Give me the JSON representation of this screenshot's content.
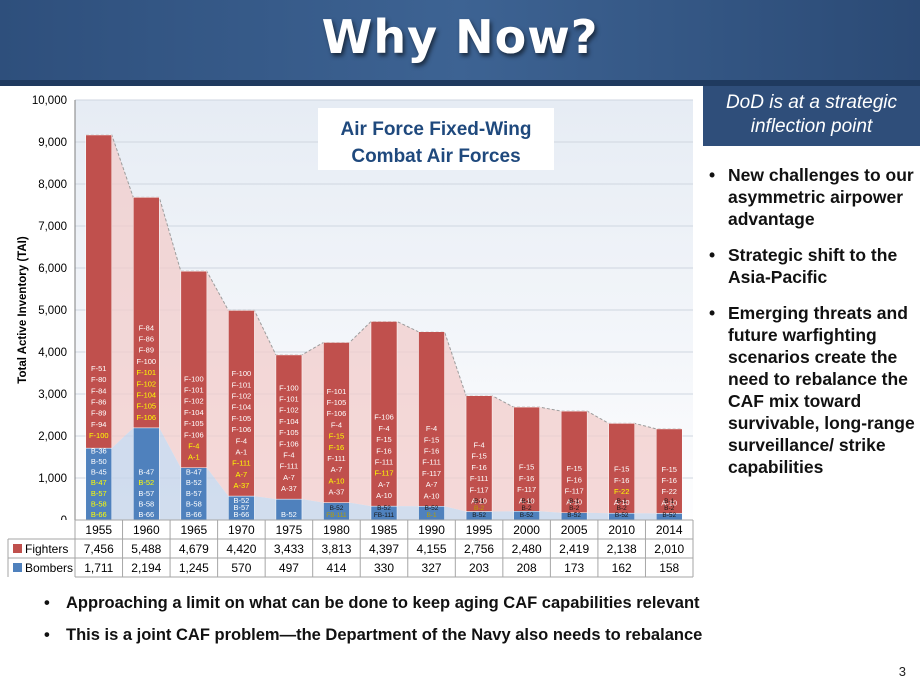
{
  "slide": {
    "title": "Why Now?",
    "callout": "DoD is at a strategic inflection point",
    "bullets": [
      "New challenges to our asymmetric airpower advantage",
      "Strategic shift to the Asia-Pacific",
      "Emerging threats and future warfighting scenarios create the need to rebalance the CAF mix toward survivable, long-range surveillance/ strike capabilities"
    ],
    "bottom_bullets": [
      "Approaching a limit on what can be done to keep aging CAF capabilities relevant",
      "This is a joint CAF problem—the Department of the Navy also needs to rebalance"
    ],
    "page_number": "3"
  },
  "chart_data": {
    "type": "bar",
    "stacked": true,
    "title": "Air Force Fixed-Wing Combat Air Forces",
    "ylabel": "Total Active Inventory (TAI)",
    "ylim": [
      0,
      10000
    ],
    "yticks": [
      0,
      1000,
      2000,
      3000,
      4000,
      5000,
      6000,
      7000,
      8000,
      9000,
      10000
    ],
    "ytick_labels": [
      "0",
      "1,000",
      "2,000",
      "3,000",
      "4,000",
      "5,000",
      "6,000",
      "7,000",
      "8,000",
      "9,000",
      "10,000"
    ],
    "categories": [
      "1955",
      "1960",
      "1965",
      "1970",
      "1975",
      "1980",
      "1985",
      "1990",
      "1995",
      "2000",
      "2005",
      "2010",
      "2014"
    ],
    "series": [
      {
        "name": "Fighters",
        "color": "#c0504d",
        "values": [
          7456,
          5488,
          4679,
          4420,
          3433,
          3813,
          4397,
          4155,
          2756,
          2480,
          2419,
          2138,
          2010
        ],
        "labels": [
          "7,456",
          "5,488",
          "4,679",
          "4,420",
          "3,433",
          "3,813",
          "4,397",
          "4,155",
          "2,756",
          "2,480",
          "2,419",
          "2,138",
          "2,010"
        ]
      },
      {
        "name": "Bombers",
        "color": "#4f81bd",
        "values": [
          1711,
          2194,
          1245,
          570,
          497,
          414,
          330,
          327,
          203,
          208,
          173,
          162,
          158
        ],
        "labels": [
          "1,711",
          "2,194",
          "1,245",
          "570",
          "497",
          "414",
          "330",
          "327",
          "203",
          "208",
          "173",
          "162",
          "158"
        ]
      }
    ],
    "fighter_types": [
      [
        "F-51",
        "F-80",
        "F-84",
        "F-86",
        "F-89",
        "F-94",
        "F-100"
      ],
      [
        "F-84",
        "F-86",
        "F-89",
        "F-100",
        "F-101",
        "F-102",
        "F-104",
        "F-105",
        "F-106"
      ],
      [
        "F-100",
        "F-101",
        "F-102",
        "F-104",
        "F-105",
        "F-106",
        "F-4",
        "A-1"
      ],
      [
        "F-100",
        "F-101",
        "F-102",
        "F-104",
        "F-105",
        "F-106",
        "F-4",
        "A-1",
        "F-111",
        "A-7",
        "A-37"
      ],
      [
        "F-100",
        "F-101",
        "F-102",
        "F-104",
        "F-105",
        "F-106",
        "F-4",
        "F-111",
        "A-7",
        "A-37"
      ],
      [
        "F-101",
        "F-105",
        "F-106",
        "F-4",
        "F-15",
        "F-16",
        "F-111",
        "A-7",
        "A-10",
        "A-37"
      ],
      [
        "F-106",
        "F-4",
        "F-15",
        "F-16",
        "F-111",
        "F-117",
        "A-7",
        "A-10"
      ],
      [
        "F-4",
        "F-15",
        "F-16",
        "F-111",
        "F-117",
        "A-7",
        "A-10"
      ],
      [
        "F-4",
        "F-15",
        "F-16",
        "F-111",
        "F-117",
        "A-10"
      ],
      [
        "F-15",
        "F-16",
        "F-117",
        "A-10"
      ],
      [
        "F-15",
        "F-16",
        "F-117",
        "A-10"
      ],
      [
        "F-15",
        "F-16",
        "F-22",
        "A-10"
      ],
      [
        "F-15",
        "F-16",
        "F-22",
        "A-10"
      ]
    ],
    "fighter_highlight": [
      [
        "F-100"
      ],
      [
        "F-101",
        "F-102",
        "F-104",
        "F-105",
        "F-106"
      ],
      [
        "F-4",
        "A-1"
      ],
      [
        "F-111",
        "A-7",
        "A-37"
      ],
      [],
      [
        "F-15",
        "F-16",
        "A-10"
      ],
      [
        "F-117"
      ],
      [],
      [],
      [],
      [],
      [
        "F-22"
      ],
      []
    ],
    "bomber_types": [
      [
        "B-36",
        "B-50",
        "B-45",
        "B-47",
        "B-57",
        "B-58",
        "B-66"
      ],
      [
        "B-47",
        "B-52",
        "B-57",
        "B-58",
        "B-66"
      ],
      [
        "B-47",
        "B-52",
        "B-57",
        "B-58",
        "B-66"
      ],
      [
        "B-52",
        "B-57",
        "B-66"
      ],
      [
        "B-52"
      ],
      [
        "B-52",
        "FB-111"
      ],
      [
        "B-52",
        "FB-111"
      ],
      [
        "B-52",
        "B-1"
      ],
      [
        "B-1",
        "B-2",
        "B-52"
      ],
      [
        "B-1",
        "B-2",
        "B-52"
      ],
      [
        "B-1",
        "B-2",
        "B-52"
      ],
      [
        "B-1",
        "B-2",
        "B-52"
      ],
      [
        "B-1",
        "B-2",
        "B-52"
      ]
    ],
    "bomber_highlight": [
      [
        "B-47",
        "B-57",
        "B-58",
        "B-66"
      ],
      [
        "B-52"
      ],
      [],
      [],
      [],
      [
        "FB-111"
      ],
      [],
      [
        "B-1"
      ],
      [
        "B-2"
      ],
      [],
      [],
      [],
      []
    ]
  }
}
